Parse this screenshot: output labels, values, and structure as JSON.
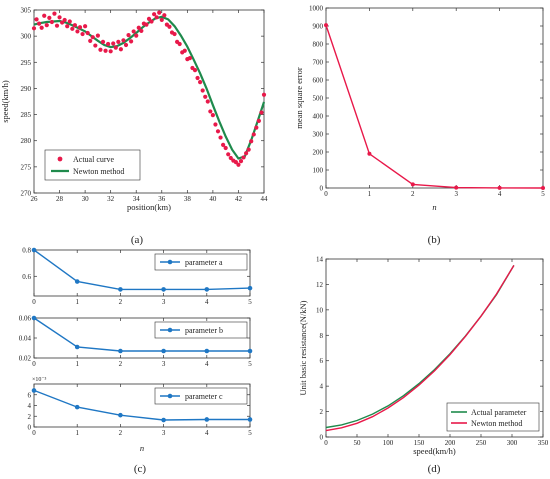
{
  "figure": {
    "captions": [
      "(a)",
      "(b)",
      "(c)",
      "(d)"
    ]
  },
  "colors": {
    "red": "#e8194a",
    "green": "#1f8a4c",
    "blue": "#1f77c4",
    "axis": "#333333"
  },
  "chart_data": [
    {
      "id": "a",
      "type": "scatter",
      "xlabel": "position(km)",
      "ylabel": "speed(km/h)",
      "xlim": [
        26,
        44
      ],
      "ylim": [
        270,
        305
      ],
      "xticks": [
        26,
        28,
        30,
        32,
        34,
        36,
        38,
        40,
        42,
        44
      ],
      "yticks": [
        270,
        275,
        280,
        285,
        290,
        295,
        300,
        305
      ],
      "legend_position": "lower-left",
      "series": [
        {
          "name": "Actual curve",
          "style": "points",
          "x": [
            26.0,
            26.2,
            26.4,
            26.6,
            26.8,
            27.0,
            27.2,
            27.4,
            27.6,
            27.8,
            28.0,
            28.2,
            28.4,
            28.6,
            28.8,
            29.0,
            29.2,
            29.4,
            29.6,
            29.8,
            30.0,
            30.2,
            30.4,
            30.6,
            30.8,
            31.0,
            31.2,
            31.4,
            31.6,
            31.8,
            32.0,
            32.2,
            32.4,
            32.6,
            32.8,
            33.0,
            33.2,
            33.4,
            33.6,
            33.8,
            34.0,
            34.2,
            34.4,
            34.6,
            34.8,
            35.0,
            35.2,
            35.4,
            35.6,
            35.8,
            36.0,
            36.2,
            36.4,
            36.6,
            36.8,
            37.0,
            37.2,
            37.4,
            37.6,
            37.8,
            38.0,
            38.2,
            38.4,
            38.6,
            38.8,
            39.0,
            39.2,
            39.4,
            39.6,
            39.8,
            40.0,
            40.2,
            40.4,
            40.6,
            40.8,
            41.0,
            41.2,
            41.4,
            41.6,
            41.8,
            42.0,
            42.2,
            42.4,
            42.6,
            42.8,
            43.0,
            43.2,
            43.4,
            43.6,
            43.8,
            44.0
          ],
          "y": [
            301.5,
            303.2,
            302.4,
            301.6,
            303.9,
            302.1,
            303.5,
            302.7,
            304.3,
            302.0,
            303.6,
            302.6,
            303.1,
            301.9,
            302.8,
            301.4,
            302.1,
            300.9,
            301.7,
            300.4,
            301.9,
            300.6,
            299.1,
            299.8,
            298.2,
            300.1,
            297.4,
            298.9,
            297.2,
            298.5,
            297.1,
            298.6,
            297.8,
            298.9,
            297.5,
            299.2,
            298.3,
            300.2,
            299.0,
            300.9,
            300.1,
            301.6,
            301.0,
            302.4,
            302.2,
            303.3,
            302.8,
            304.2,
            303.6,
            304.5,
            303.1,
            304.0,
            302.2,
            301.8,
            300.7,
            300.4,
            298.9,
            298.5,
            296.9,
            297.2,
            295.6,
            295.8,
            293.9,
            293.5,
            292.0,
            291.2,
            289.6,
            288.4,
            287.5,
            285.6,
            284.9,
            283.1,
            281.8,
            280.6,
            279.2,
            278.6,
            277.4,
            276.7,
            276.2,
            275.9,
            275.4,
            276.1,
            276.8,
            277.6,
            278.3,
            279.9,
            281.2,
            282.5,
            283.8,
            285.4,
            288.8
          ]
        },
        {
          "name": "Newton method",
          "style": "line",
          "x": [
            26.0,
            26.5,
            27.0,
            27.5,
            28.0,
            28.5,
            29.0,
            29.5,
            30.0,
            30.5,
            31.0,
            31.5,
            32.0,
            32.5,
            33.0,
            33.5,
            34.0,
            34.5,
            35.0,
            35.5,
            36.0,
            36.5,
            37.0,
            37.5,
            38.0,
            38.5,
            39.0,
            39.5,
            40.0,
            40.5,
            41.0,
            41.5,
            42.0,
            42.5,
            43.0,
            43.5,
            44.0
          ],
          "y": [
            302.2,
            302.5,
            302.7,
            302.8,
            302.9,
            302.6,
            302.1,
            301.5,
            300.9,
            300.0,
            299.1,
            298.3,
            297.9,
            298.1,
            298.7,
            299.6,
            300.6,
            301.7,
            302.6,
            303.4,
            303.7,
            303.2,
            301.9,
            300.1,
            298.0,
            295.5,
            292.9,
            290.0,
            286.8,
            283.7,
            280.8,
            278.3,
            276.6,
            277.0,
            280.1,
            283.7,
            287.4
          ]
        }
      ]
    },
    {
      "id": "b",
      "type": "line",
      "xlabel": "n",
      "ylabel": "mean square error",
      "xlim": [
        0,
        5
      ],
      "ylim": [
        0,
        1000
      ],
      "xticks": [
        0,
        1,
        2,
        3,
        4,
        5
      ],
      "yticks": [
        0,
        100,
        200,
        300,
        400,
        500,
        600,
        700,
        800,
        900,
        1000
      ],
      "x": [
        0,
        1,
        2,
        3,
        4,
        5
      ],
      "y": [
        905,
        190,
        20,
        2,
        0.5,
        0.2
      ]
    },
    {
      "id": "c1",
      "type": "line",
      "xlim": [
        0,
        5
      ],
      "ylim": [
        0.45,
        0.8
      ],
      "xticks": [
        0,
        1,
        2,
        3,
        4,
        5
      ],
      "yticks": [
        0.6,
        0.8
      ],
      "legend_position": "top-right",
      "series": [
        {
          "name": "parameter a",
          "x": [
            0,
            1,
            2,
            3,
            4,
            5
          ],
          "y": [
            0.8,
            0.56,
            0.5,
            0.5,
            0.5,
            0.51
          ]
        }
      ]
    },
    {
      "id": "c2",
      "type": "line",
      "xlim": [
        0,
        5
      ],
      "ylim": [
        0.02,
        0.06
      ],
      "xticks": [
        0,
        1,
        2,
        3,
        4,
        5
      ],
      "yticks": [
        0.02,
        0.04,
        0.06
      ],
      "legend_position": "top-right",
      "series": [
        {
          "name": "parameter b",
          "x": [
            0,
            1,
            2,
            3,
            4,
            5
          ],
          "y": [
            0.06,
            0.031,
            0.027,
            0.027,
            0.027,
            0.027
          ]
        }
      ]
    },
    {
      "id": "c3",
      "type": "line",
      "xlabel": "n",
      "xlim": [
        0,
        5
      ],
      "ylim": [
        0,
        8
      ],
      "xticks": [
        0,
        1,
        2,
        3,
        4,
        5
      ],
      "yticks": [
        0,
        2,
        4,
        6
      ],
      "multiplier": "×10⁻³",
      "legend_position": "top-right",
      "series": [
        {
          "name": "parameter c",
          "x": [
            0,
            1,
            2,
            3,
            4,
            5
          ],
          "y": [
            6.8,
            3.7,
            2.2,
            1.3,
            1.4,
            1.4
          ]
        }
      ]
    },
    {
      "id": "d",
      "type": "line",
      "xlabel": "speed(km/h)",
      "ylabel": "Unit basic resistance(N/kN)",
      "xlim": [
        0,
        350
      ],
      "ylim": [
        0,
        14
      ],
      "xticks": [
        0,
        50,
        100,
        150,
        200,
        250,
        300,
        350
      ],
      "yticks": [
        0,
        2,
        4,
        6,
        8,
        10,
        12,
        14
      ],
      "legend_position": "lower-right",
      "series": [
        {
          "name": "Actual parameter",
          "x": [
            0,
            25,
            50,
            75,
            100,
            125,
            150,
            175,
            200,
            225,
            250,
            275,
            303
          ],
          "y": [
            0.75,
            0.95,
            1.3,
            1.8,
            2.45,
            3.25,
            4.2,
            5.3,
            6.55,
            7.95,
            9.5,
            11.2,
            13.5
          ]
        },
        {
          "name": "Newton method",
          "x": [
            0,
            25,
            50,
            75,
            100,
            125,
            150,
            175,
            200,
            225,
            250,
            275,
            303
          ],
          "y": [
            0.5,
            0.72,
            1.08,
            1.6,
            2.28,
            3.1,
            4.08,
            5.2,
            6.48,
            7.92,
            9.5,
            11.25,
            13.5
          ]
        }
      ]
    }
  ]
}
